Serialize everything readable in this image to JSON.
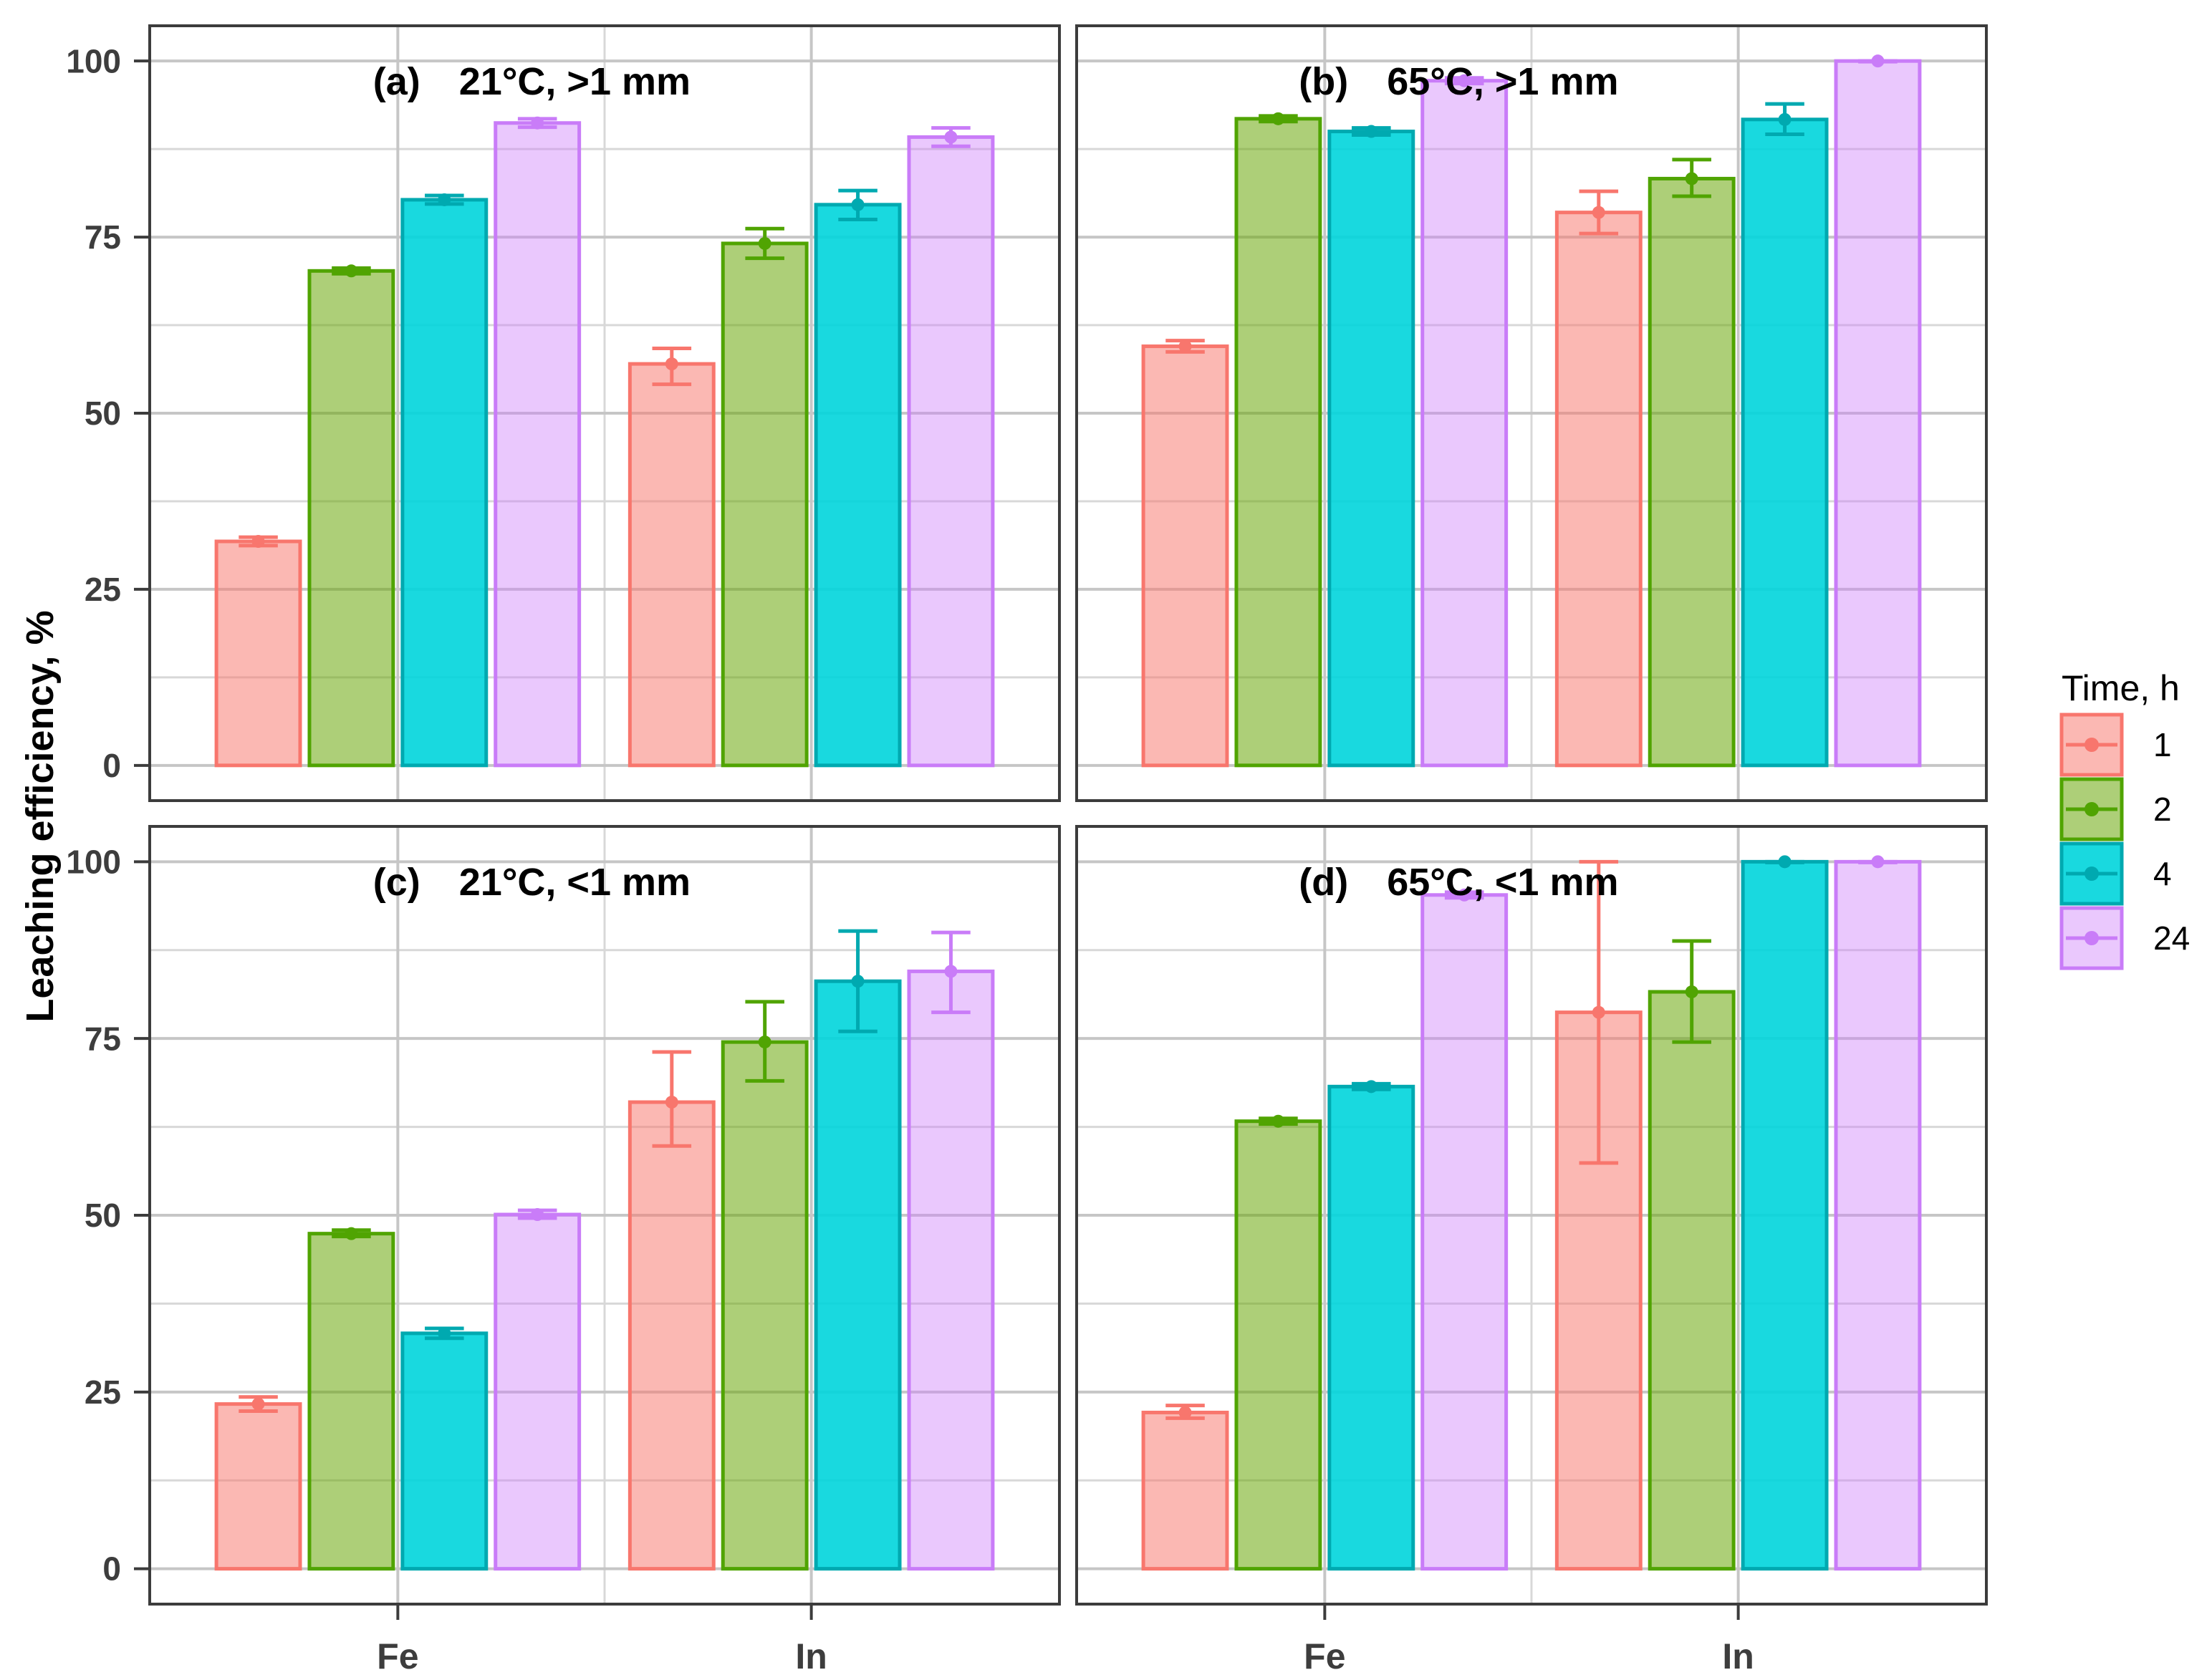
{
  "figure": {
    "y_axis_title": "Leaching efficiency, %",
    "x_category_labels": [
      "Fe",
      "In"
    ],
    "y_tick_labels": [
      "0",
      "25",
      "50",
      "75",
      "100"
    ]
  },
  "legend": {
    "title": "Time, h",
    "entries": [
      {
        "label": "1"
      },
      {
        "label": "2"
      },
      {
        "label": "4"
      },
      {
        "label": "24"
      }
    ]
  },
  "palette": {
    "series": [
      {
        "name": "1",
        "stroke": "#F8766D",
        "fill": "rgba(248,118,109,0.52)"
      },
      {
        "name": "2",
        "stroke": "#50A402",
        "fill": "rgba(106,168,10,0.55)"
      },
      {
        "name": "4",
        "stroke": "#00A9B0",
        "fill": "rgba(0,213,220,0.90)"
      },
      {
        "name": "24",
        "stroke": "#C97CF8",
        "fill": "rgba(205,125,250,0.42)"
      }
    ],
    "grid_major": "#C6C6C6",
    "grid_minor": "#D8D8D8",
    "panel_border": "#3C3C3C",
    "tick_text": "#3D3D3D",
    "title_text": "#000000"
  },
  "chart_data": {
    "type": "bar",
    "ylabel": "Leaching efficiency, %",
    "ylim": [
      0,
      100
    ],
    "y_major_ticks": [
      0,
      25,
      50,
      75,
      100
    ],
    "y_minor_ticks": [
      12.5,
      37.5,
      62.5,
      87.5
    ],
    "grid": true,
    "legend_title": "Time, h",
    "legend_position": "right",
    "categories": [
      "Fe",
      "In"
    ],
    "series_names": [
      "1",
      "2",
      "4",
      "24"
    ],
    "facets": [
      {
        "tag": "(a)",
        "condition": "21°C, >1 mm",
        "groups": [
          [
            {
              "time_h": "1",
              "mean": 31.8,
              "err_lo": 31.2,
              "err_hi": 32.4
            },
            {
              "time_h": "2",
              "mean": 70.2,
              "err_lo": 69.8,
              "err_hi": 70.6
            },
            {
              "time_h": "4",
              "mean": 80.3,
              "err_lo": 79.7,
              "err_hi": 80.9
            },
            {
              "time_h": "24",
              "mean": 91.2,
              "err_lo": 90.6,
              "err_hi": 91.8
            }
          ],
          [
            {
              "time_h": "1",
              "mean": 57.0,
              "err_lo": 54.1,
              "err_hi": 59.2
            },
            {
              "time_h": "2",
              "mean": 74.1,
              "err_lo": 72.0,
              "err_hi": 76.2
            },
            {
              "time_h": "4",
              "mean": 79.6,
              "err_lo": 77.5,
              "err_hi": 81.6
            },
            {
              "time_h": "24",
              "mean": 89.2,
              "err_lo": 87.9,
              "err_hi": 90.5
            }
          ]
        ]
      },
      {
        "tag": "(b)",
        "condition": "65°C, >1 mm",
        "groups": [
          [
            {
              "time_h": "1",
              "mean": 59.5,
              "err_lo": 58.7,
              "err_hi": 60.3
            },
            {
              "time_h": "2",
              "mean": 91.8,
              "err_lo": 91.4,
              "err_hi": 92.2
            },
            {
              "time_h": "4",
              "mean": 90.0,
              "err_lo": 89.5,
              "err_hi": 90.5
            },
            {
              "time_h": "24",
              "mean": 97.2,
              "err_lo": 96.8,
              "err_hi": 97.6
            }
          ],
          [
            {
              "time_h": "1",
              "mean": 78.5,
              "err_lo": 75.5,
              "err_hi": 81.5
            },
            {
              "time_h": "2",
              "mean": 83.3,
              "err_lo": 80.8,
              "err_hi": 86.0
            },
            {
              "time_h": "4",
              "mean": 91.7,
              "err_lo": 89.6,
              "err_hi": 93.9
            },
            {
              "time_h": "24",
              "mean": 100.0,
              "err_lo": 99.9,
              "err_hi": 100.0
            }
          ]
        ]
      },
      {
        "tag": "(c)",
        "condition": "21°C, <1 mm",
        "groups": [
          [
            {
              "time_h": "1",
              "mean": 23.3,
              "err_lo": 22.3,
              "err_hi": 24.3
            },
            {
              "time_h": "2",
              "mean": 47.4,
              "err_lo": 47.0,
              "err_hi": 47.9
            },
            {
              "time_h": "4",
              "mean": 33.3,
              "err_lo": 32.6,
              "err_hi": 34.0
            },
            {
              "time_h": "24",
              "mean": 50.1,
              "err_lo": 49.6,
              "err_hi": 50.7
            }
          ],
          [
            {
              "time_h": "1",
              "mean": 66.0,
              "err_lo": 59.8,
              "err_hi": 73.1
            },
            {
              "time_h": "2",
              "mean": 74.5,
              "err_lo": 69.0,
              "err_hi": 80.2
            },
            {
              "time_h": "4",
              "mean": 83.1,
              "err_lo": 76.0,
              "err_hi": 90.2
            },
            {
              "time_h": "24",
              "mean": 84.5,
              "err_lo": 78.7,
              "err_hi": 90.0
            }
          ]
        ]
      },
      {
        "tag": "(d)",
        "condition": "65°C, <1 mm",
        "groups": [
          [
            {
              "time_h": "1",
              "mean": 22.1,
              "err_lo": 21.3,
              "err_hi": 23.1
            },
            {
              "time_h": "2",
              "mean": 63.3,
              "err_lo": 62.9,
              "err_hi": 63.7
            },
            {
              "time_h": "4",
              "mean": 68.2,
              "err_lo": 67.8,
              "err_hi": 68.6
            },
            {
              "time_h": "24",
              "mean": 95.3,
              "err_lo": 94.9,
              "err_hi": 95.7
            }
          ],
          [
            {
              "time_h": "1",
              "mean": 78.7,
              "err_lo": 57.4,
              "err_hi": 100.0
            },
            {
              "time_h": "2",
              "mean": 81.6,
              "err_lo": 74.5,
              "err_hi": 88.8
            },
            {
              "time_h": "4",
              "mean": 100.0,
              "err_lo": 99.9,
              "err_hi": 100.0
            },
            {
              "time_h": "24",
              "mean": 100.0,
              "err_lo": 99.9,
              "err_hi": 100.0
            }
          ]
        ]
      }
    ]
  }
}
